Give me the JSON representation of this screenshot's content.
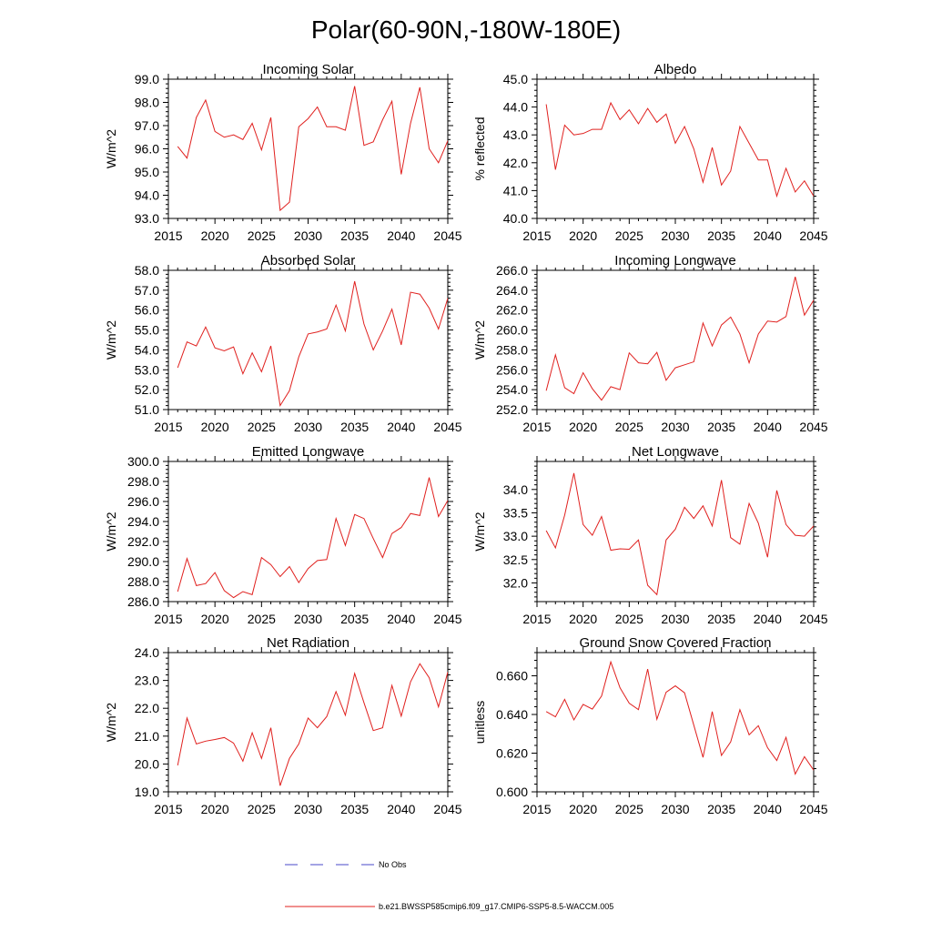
{
  "figure": {
    "title": "Polar(60-90N,-180W-180E)",
    "legend": [
      {
        "label": "No Obs",
        "color": "#4a4ac8",
        "dash": true
      },
      {
        "label": "b.e21.BWSSP585cmip6.f09_g17.CMIP6-SSP5-8.5-WACCM.005",
        "color": "#e0201e",
        "dash": false
      }
    ]
  },
  "chart_data": [
    {
      "type": "line",
      "title": "Incoming Solar",
      "ylabel": "W/m^2",
      "xlim": [
        2015,
        2045
      ],
      "ylim": [
        93.0,
        99.0
      ],
      "xticks": [
        2015,
        2020,
        2025,
        2030,
        2035,
        2040,
        2045
      ],
      "yticks": [
        93.0,
        94.0,
        95.0,
        96.0,
        97.0,
        98.0,
        99.0
      ],
      "decimals": 1,
      "series_color": "#e0201e",
      "x": [
        2016,
        2017,
        2018,
        2019,
        2020,
        2021,
        2022,
        2023,
        2024,
        2025,
        2026,
        2027,
        2028,
        2029,
        2030,
        2031,
        2032,
        2033,
        2034,
        2035,
        2036,
        2037,
        2038,
        2039,
        2040,
        2041,
        2042,
        2043,
        2044,
        2045
      ],
      "values": [
        96.1,
        95.6,
        97.35,
        98.1,
        96.75,
        96.5,
        96.6,
        96.4,
        97.1,
        95.95,
        97.35,
        93.35,
        93.7,
        96.95,
        97.3,
        97.8,
        96.95,
        96.95,
        96.8,
        98.7,
        96.15,
        96.3,
        97.25,
        98.05,
        94.9,
        97.1,
        98.65,
        96.0,
        95.4,
        96.35
      ]
    },
    {
      "type": "line",
      "title": "Albedo",
      "ylabel": "% reflected",
      "xlim": [
        2015,
        2045
      ],
      "ylim": [
        40.0,
        45.0
      ],
      "xticks": [
        2015,
        2020,
        2025,
        2030,
        2035,
        2040,
        2045
      ],
      "yticks": [
        40.0,
        41.0,
        42.0,
        43.0,
        44.0,
        45.0
      ],
      "decimals": 1,
      "series_color": "#e0201e",
      "x": [
        2016,
        2017,
        2018,
        2019,
        2020,
        2021,
        2022,
        2023,
        2024,
        2025,
        2026,
        2027,
        2028,
        2029,
        2030,
        2031,
        2032,
        2033,
        2034,
        2035,
        2036,
        2037,
        2038,
        2039,
        2040,
        2041,
        2042,
        2043,
        2044,
        2045
      ],
      "values": [
        44.1,
        41.75,
        43.35,
        43.0,
        43.05,
        43.2,
        43.2,
        44.15,
        43.55,
        43.9,
        43.4,
        43.95,
        43.45,
        43.75,
        42.7,
        43.3,
        42.5,
        41.3,
        42.55,
        41.2,
        41.7,
        43.3,
        42.7,
        42.1,
        42.1,
        40.8,
        41.8,
        40.95,
        41.35,
        40.8
      ]
    },
    {
      "type": "line",
      "title": "Absorbed Solar",
      "ylabel": "W/m^2",
      "xlim": [
        2015,
        2045
      ],
      "ylim": [
        51.0,
        58.0
      ],
      "xticks": [
        2015,
        2020,
        2025,
        2030,
        2035,
        2040,
        2045
      ],
      "yticks": [
        51.0,
        52.0,
        53.0,
        54.0,
        55.0,
        56.0,
        57.0,
        58.0
      ],
      "decimals": 1,
      "series_color": "#e0201e",
      "x": [
        2016,
        2017,
        2018,
        2019,
        2020,
        2021,
        2022,
        2023,
        2024,
        2025,
        2026,
        2027,
        2028,
        2029,
        2030,
        2031,
        2032,
        2033,
        2034,
        2035,
        2036,
        2037,
        2038,
        2039,
        2040,
        2041,
        2042,
        2043,
        2044,
        2045
      ],
      "values": [
        53.1,
        54.4,
        54.2,
        55.15,
        54.1,
        53.95,
        54.15,
        52.8,
        53.85,
        52.9,
        54.2,
        51.2,
        51.95,
        53.65,
        54.8,
        54.9,
        55.05,
        56.25,
        54.95,
        57.45,
        55.3,
        54.0,
        54.95,
        56.05,
        54.25,
        56.9,
        56.8,
        56.1,
        55.05,
        56.6
      ]
    },
    {
      "type": "line",
      "title": "Incoming Longwave",
      "ylabel": "W/m^2",
      "xlim": [
        2015,
        2045
      ],
      "ylim": [
        252.0,
        266.0
      ],
      "xticks": [
        2015,
        2020,
        2025,
        2030,
        2035,
        2040,
        2045
      ],
      "yticks": [
        252.0,
        254.0,
        256.0,
        258.0,
        260.0,
        262.0,
        264.0,
        266.0
      ],
      "decimals": 1,
      "series_color": "#e0201e",
      "x": [
        2016,
        2017,
        2018,
        2019,
        2020,
        2021,
        2022,
        2023,
        2024,
        2025,
        2026,
        2027,
        2028,
        2029,
        2030,
        2031,
        2032,
        2033,
        2034,
        2035,
        2036,
        2037,
        2038,
        2039,
        2040,
        2041,
        2042,
        2043,
        2044,
        2045
      ],
      "values": [
        253.9,
        257.5,
        254.2,
        253.6,
        255.7,
        254.1,
        252.95,
        254.3,
        254.0,
        257.7,
        256.7,
        256.6,
        257.75,
        254.95,
        256.2,
        256.5,
        256.8,
        260.7,
        258.4,
        260.5,
        261.3,
        259.6,
        256.7,
        259.6,
        260.9,
        260.8,
        261.35,
        265.35,
        261.5,
        263.0
      ]
    },
    {
      "type": "line",
      "title": "Emitted Longwave",
      "ylabel": "W/m^2",
      "xlim": [
        2015,
        2045
      ],
      "ylim": [
        286.0,
        300.0
      ],
      "xticks": [
        2015,
        2020,
        2025,
        2030,
        2035,
        2040,
        2045
      ],
      "yticks": [
        286.0,
        288.0,
        290.0,
        292.0,
        294.0,
        296.0,
        298.0,
        300.0
      ],
      "decimals": 1,
      "series_color": "#e0201e",
      "x": [
        2016,
        2017,
        2018,
        2019,
        2020,
        2021,
        2022,
        2023,
        2024,
        2025,
        2026,
        2027,
        2028,
        2029,
        2030,
        2031,
        2032,
        2033,
        2034,
        2035,
        2036,
        2037,
        2038,
        2039,
        2040,
        2041,
        2042,
        2043,
        2044,
        2045
      ],
      "values": [
        287.0,
        290.3,
        287.6,
        287.8,
        288.9,
        287.1,
        286.4,
        287.0,
        286.7,
        290.4,
        289.7,
        288.5,
        289.5,
        287.9,
        289.3,
        290.1,
        290.2,
        294.3,
        291.6,
        294.7,
        294.3,
        292.3,
        290.4,
        292.8,
        293.4,
        294.8,
        294.6,
        298.4,
        294.5,
        296.1
      ]
    },
    {
      "type": "line",
      "title": "Net Longwave",
      "ylabel": "W/m^2",
      "xlim": [
        2015,
        2045
      ],
      "ylim": [
        31.6,
        34.6
      ],
      "xticks": [
        2015,
        2020,
        2025,
        2030,
        2035,
        2040,
        2045
      ],
      "yticks": [
        32.0,
        32.5,
        33.0,
        33.5,
        34.0
      ],
      "decimals": 1,
      "series_color": "#e0201e",
      "x": [
        2016,
        2017,
        2018,
        2019,
        2020,
        2021,
        2022,
        2023,
        2024,
        2025,
        2026,
        2027,
        2028,
        2029,
        2030,
        2031,
        2032,
        2033,
        2034,
        2035,
        2036,
        2037,
        2038,
        2039,
        2040,
        2041,
        2042,
        2043,
        2044,
        2045
      ],
      "values": [
        33.12,
        32.75,
        33.45,
        34.35,
        33.25,
        33.02,
        33.42,
        32.7,
        32.73,
        32.72,
        32.92,
        31.95,
        31.75,
        32.92,
        33.15,
        33.62,
        33.38,
        33.65,
        33.22,
        34.2,
        32.97,
        32.83,
        33.7,
        33.28,
        32.55,
        33.98,
        33.25,
        33.02,
        33.0,
        33.22
      ]
    },
    {
      "type": "line",
      "title": "Net Radiation",
      "ylabel": "W/m^2",
      "xlim": [
        2015,
        2045
      ],
      "ylim": [
        19.0,
        24.0
      ],
      "xticks": [
        2015,
        2020,
        2025,
        2030,
        2035,
        2040,
        2045
      ],
      "yticks": [
        19.0,
        20.0,
        21.0,
        22.0,
        23.0,
        24.0
      ],
      "decimals": 1,
      "series_color": "#e0201e",
      "x": [
        2016,
        2017,
        2018,
        2019,
        2020,
        2021,
        2022,
        2023,
        2024,
        2025,
        2026,
        2027,
        2028,
        2029,
        2030,
        2031,
        2032,
        2033,
        2034,
        2035,
        2036,
        2037,
        2038,
        2039,
        2040,
        2041,
        2042,
        2043,
        2044,
        2045
      ],
      "values": [
        19.95,
        21.65,
        20.72,
        20.82,
        20.88,
        20.95,
        20.75,
        20.1,
        21.12,
        20.2,
        21.3,
        19.22,
        20.2,
        20.72,
        21.65,
        21.3,
        21.7,
        22.6,
        21.75,
        23.25,
        22.2,
        21.2,
        21.3,
        22.82,
        21.72,
        22.95,
        23.6,
        23.1,
        22.05,
        23.3
      ]
    },
    {
      "type": "line",
      "title": "Ground Snow Covered Fraction",
      "ylabel": "unitless",
      "xlim": [
        2015,
        2045
      ],
      "ylim": [
        0.6,
        0.672
      ],
      "xticks": [
        2015,
        2020,
        2025,
        2030,
        2035,
        2040,
        2045
      ],
      "yticks": [
        0.6,
        0.62,
        0.64,
        0.66
      ],
      "decimals": 3,
      "series_color": "#e0201e",
      "x": [
        2016,
        2017,
        2018,
        2019,
        2020,
        2021,
        2022,
        2023,
        2024,
        2025,
        2026,
        2027,
        2028,
        2029,
        2030,
        2031,
        2032,
        2033,
        2034,
        2035,
        2036,
        2037,
        2038,
        2039,
        2040,
        2041,
        2042,
        2043,
        2044,
        2045
      ],
      "values": [
        0.6415,
        0.6388,
        0.6478,
        0.6372,
        0.6452,
        0.6428,
        0.6495,
        0.6672,
        0.6538,
        0.6458,
        0.6425,
        0.6635,
        0.6375,
        0.6515,
        0.6548,
        0.6512,
        0.6345,
        0.6178,
        0.6415,
        0.6188,
        0.6258,
        0.6425,
        0.6295,
        0.6342,
        0.6228,
        0.6162,
        0.6282,
        0.6092,
        0.6182,
        0.6112
      ]
    }
  ]
}
